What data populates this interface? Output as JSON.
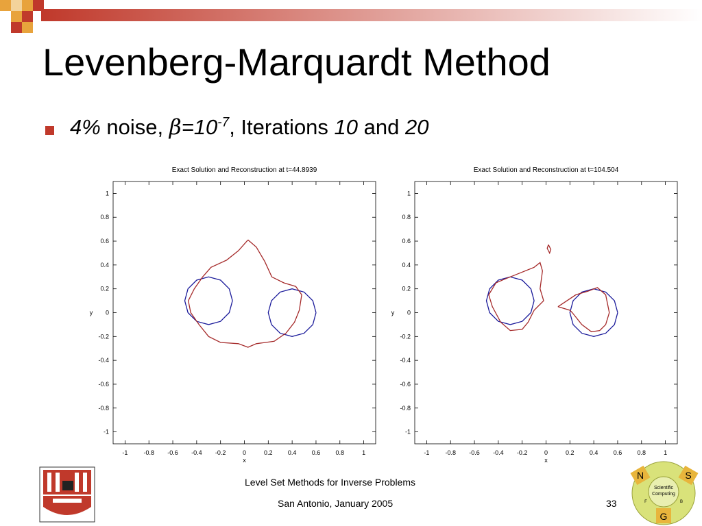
{
  "slide": {
    "title": "Levenberg-Marquardt Method",
    "bullet": [
      "4%",
      " noise, ",
      "β",
      "=10",
      "-7",
      ", Iterations ",
      "10",
      " and ",
      "20"
    ],
    "footer": {
      "title": "Level Set Methods for Inverse Problems",
      "place_date": "San Antonio, January 2005",
      "page": "33"
    },
    "logo": [
      "N",
      "S",
      "G",
      "Scientific",
      "Computing",
      "F",
      "B"
    ]
  },
  "chart_data": [
    {
      "type": "line",
      "title": "Exact Solution and Reconstruction at t=44.8939",
      "x_label": "x",
      "y_label": "y",
      "xlim": [
        -1.1,
        1.1
      ],
      "ylim": [
        -1.1,
        1.1
      ],
      "xticks": [
        -1,
        -0.8,
        -0.6,
        -0.4,
        -0.2,
        0,
        0.2,
        0.4,
        0.6,
        0.8,
        1
      ],
      "yticks": [
        -1,
        -0.8,
        -0.6,
        -0.4,
        -0.2,
        0,
        0.2,
        0.4,
        0.6,
        0.8,
        1
      ],
      "series": [
        {
          "color": "#1a1a9a",
          "x": [
            -0.1,
            -0.127,
            -0.2,
            -0.3,
            -0.4,
            -0.473,
            -0.5,
            -0.473,
            -0.4,
            -0.3,
            -0.2,
            -0.127,
            -0.1,
            null,
            0.6,
            0.573,
            0.5,
            0.4,
            0.3,
            0.227,
            0.2,
            0.227,
            0.3,
            0.4,
            0.5,
            0.573,
            0.6
          ],
          "y": [
            0.1,
            0.2,
            0.273,
            0.3,
            0.273,
            0.2,
            0.1,
            0,
            -0.073,
            -0.1,
            -0.073,
            0,
            0.1,
            null,
            0,
            0.1,
            0.173,
            0.2,
            0.173,
            0.1,
            0,
            -0.1,
            -0.173,
            -0.2,
            -0.173,
            -0.1,
            0
          ]
        },
        {
          "color": "#a52a2a",
          "x": [
            0.03,
            0.1,
            0.17,
            0.23,
            0.33,
            0.43,
            0.48,
            0.46,
            0.42,
            0.35,
            0.25,
            0.1,
            0.03,
            -0.05,
            -0.2,
            -0.3,
            -0.38,
            -0.45,
            -0.47,
            -0.42,
            -0.35,
            -0.28,
            -0.15,
            -0.05,
            0.03
          ],
          "y": [
            0.61,
            0.55,
            0.43,
            0.3,
            0.25,
            0.22,
            0.15,
            0.02,
            -0.08,
            -0.17,
            -0.24,
            -0.26,
            -0.29,
            -0.26,
            -0.25,
            -0.2,
            -0.1,
            0,
            0.1,
            0.2,
            0.3,
            0.38,
            0.44,
            0.52,
            0.61
          ]
        }
      ]
    },
    {
      "type": "line",
      "title": "Exact Solution and Reconstruction at t=104.504",
      "x_label": "x",
      "y_label": "y",
      "xlim": [
        -1.1,
        1.1
      ],
      "ylim": [
        -1.1,
        1.1
      ],
      "xticks": [
        -1,
        -0.8,
        -0.6,
        -0.4,
        -0.2,
        0,
        0.2,
        0.4,
        0.6,
        0.8,
        1
      ],
      "yticks": [
        -1,
        -0.8,
        -0.6,
        -0.4,
        -0.2,
        0,
        0.2,
        0.4,
        0.6,
        0.8,
        1
      ],
      "series": [
        {
          "color": "#1a1a9a",
          "x": [
            -0.1,
            -0.127,
            -0.2,
            -0.3,
            -0.4,
            -0.473,
            -0.5,
            -0.473,
            -0.4,
            -0.3,
            -0.2,
            -0.127,
            -0.1,
            null,
            0.6,
            0.573,
            0.5,
            0.4,
            0.3,
            0.227,
            0.2,
            0.227,
            0.3,
            0.4,
            0.5,
            0.573,
            0.6
          ],
          "y": [
            0.1,
            0.2,
            0.273,
            0.3,
            0.273,
            0.2,
            0.1,
            0,
            -0.073,
            -0.1,
            -0.073,
            0,
            0.1,
            null,
            0,
            0.1,
            0.173,
            0.2,
            0.173,
            0.1,
            0,
            -0.1,
            -0.173,
            -0.2,
            -0.173,
            -0.1,
            0
          ]
        },
        {
          "color": "#a52a2a",
          "x": [
            -0.35,
            -0.2,
            -0.1,
            -0.05,
            -0.03,
            -0.05,
            -0.02,
            -0.1,
            -0.15,
            -0.2,
            -0.3,
            -0.38,
            -0.45,
            -0.48,
            -0.42,
            -0.35,
            null,
            0.1,
            0.25,
            0.35,
            0.43,
            0.5,
            0.53,
            0.5,
            0.45,
            0.38,
            0.3,
            0.22,
            0.2,
            0.1,
            null,
            0.02,
            0.04,
            0.03,
            0.01,
            0.02
          ],
          "y": [
            0.28,
            0.34,
            0.38,
            0.42,
            0.35,
            0.2,
            0.1,
            0.02,
            -0.08,
            -0.14,
            -0.15,
            -0.08,
            0.05,
            0.15,
            0.25,
            0.28,
            null,
            0.05,
            0.15,
            0.18,
            0.21,
            0.15,
            0,
            -0.1,
            -0.15,
            -0.16,
            -0.1,
            0,
            0.02,
            0.05,
            null,
            0.57,
            0.53,
            0.5,
            0.54,
            0.57
          ]
        }
      ]
    }
  ]
}
